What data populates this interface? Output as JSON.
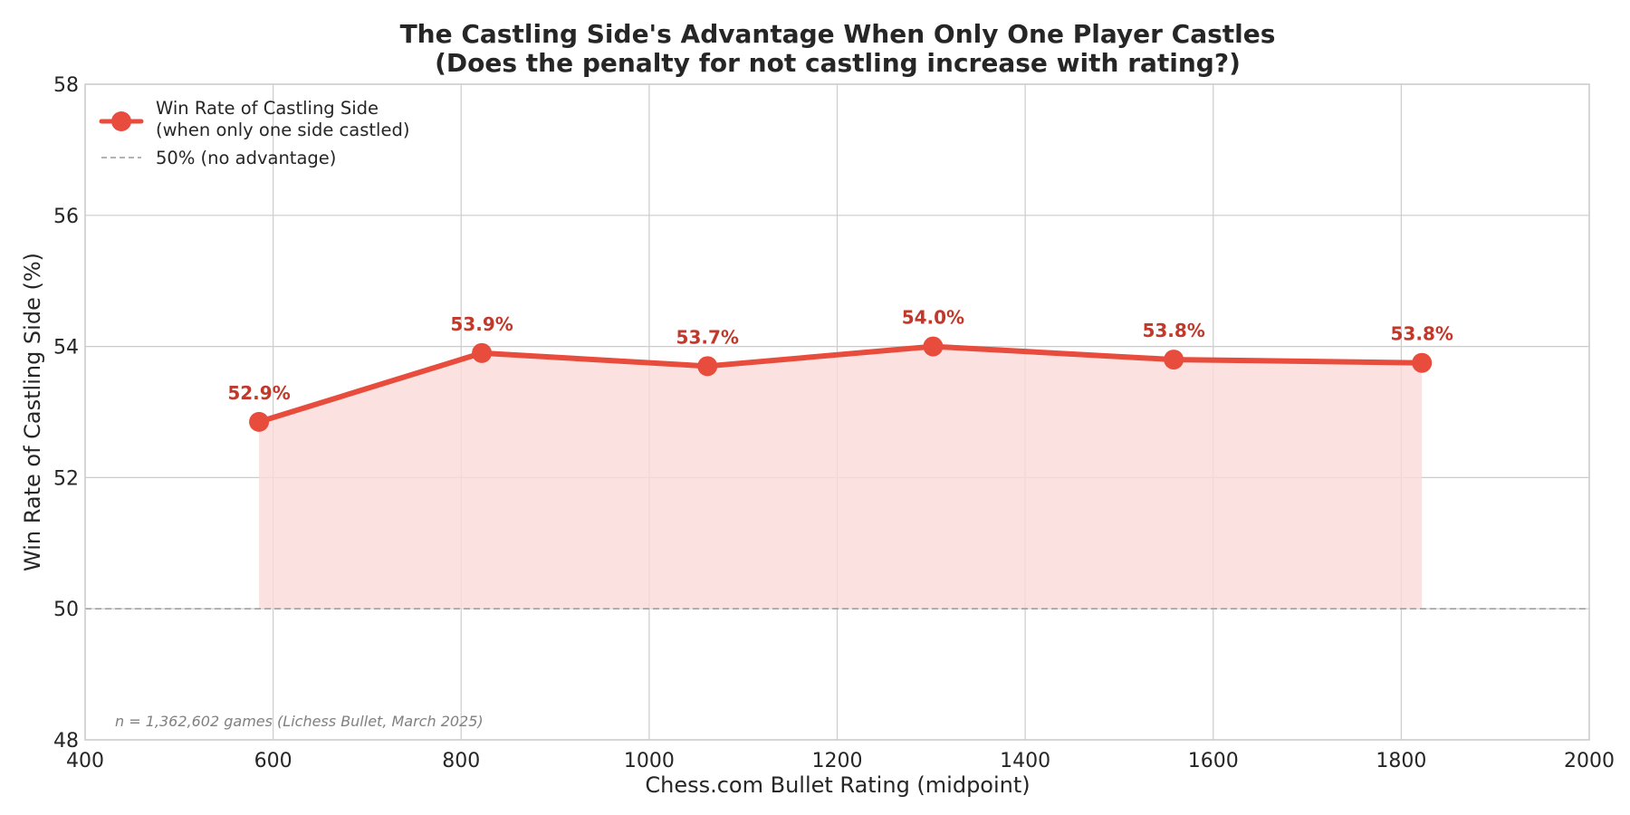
{
  "chart_data": {
    "type": "line",
    "title_lines": [
      "The Castling Side's Advantage When Only One Player Castles",
      "(Does the penalty for not castling increase with rating?)"
    ],
    "xlabel": "Chess.com Bullet Rating (midpoint)",
    "ylabel": "Win Rate of Castling Side (%)",
    "xlim": [
      400,
      2000
    ],
    "ylim": [
      48,
      58
    ],
    "x_ticks": [
      400,
      600,
      800,
      1000,
      1200,
      1400,
      1600,
      1800,
      2000
    ],
    "y_ticks": [
      48,
      50,
      52,
      54,
      56,
      58
    ],
    "grid": true,
    "legend_position": "top-left",
    "series": [
      {
        "name": "Win Rate of Castling Side\n(when only one side castled)",
        "x": [
          585,
          822,
          1062,
          1302,
          1558,
          1822
        ],
        "y": [
          52.85,
          53.9,
          53.7,
          54.0,
          53.8,
          53.75
        ],
        "labels": [
          "52.9%",
          "53.9%",
          "53.7%",
          "54.0%",
          "53.8%",
          "53.8%"
        ],
        "color": "#e74c3c",
        "label_color": "#c0392b",
        "fill_color": "#fadbd8",
        "fill_baseline": 50
      }
    ],
    "reference_line": {
      "name": "50% (no advantage)",
      "y": 50,
      "color": "#999999",
      "style": "dashed"
    },
    "annotation": "n = 1,362,602 games (Lichess Bullet, March 2025)"
  }
}
